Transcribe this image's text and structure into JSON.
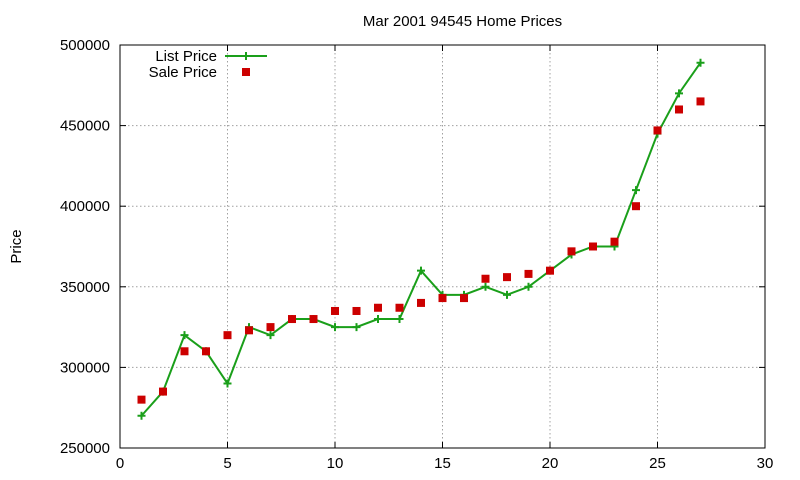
{
  "chart_data": {
    "type": "line",
    "title": "Mar 2001 94545 Home Prices",
    "xlabel": "",
    "ylabel": "Price",
    "xlim": [
      0,
      30
    ],
    "ylim": [
      250000,
      500000
    ],
    "xticks": [
      "0",
      "5",
      "10",
      "15",
      "20",
      "25",
      "30"
    ],
    "yticks": [
      "250000",
      "300000",
      "350000",
      "400000",
      "450000",
      "500000"
    ],
    "grid": true,
    "legend_position": "top-left",
    "series": [
      {
        "name": "List Price",
        "style": "linespoints",
        "color": "#1a9f1a",
        "x": [
          1,
          2,
          3,
          4,
          5,
          6,
          7,
          8,
          9,
          10,
          11,
          12,
          13,
          14,
          15,
          16,
          17,
          18,
          19,
          20,
          21,
          22,
          23,
          24,
          25,
          26,
          27
        ],
        "y": [
          270000,
          285000,
          320000,
          310000,
          290000,
          325000,
          320000,
          330000,
          330000,
          325000,
          325000,
          330000,
          330000,
          360000,
          345000,
          345000,
          350000,
          345000,
          350000,
          360000,
          370000,
          375000,
          375000,
          410000,
          445000,
          470000,
          489000
        ]
      },
      {
        "name": "Sale Price",
        "style": "points",
        "color": "#cc0000",
        "x": [
          1,
          2,
          3,
          4,
          5,
          6,
          7,
          8,
          9,
          10,
          11,
          12,
          13,
          14,
          15,
          16,
          17,
          18,
          19,
          20,
          21,
          22,
          23,
          24,
          25,
          26,
          27
        ],
        "y": [
          280000,
          285000,
          310000,
          310000,
          320000,
          323000,
          325000,
          330000,
          330000,
          335000,
          335000,
          337000,
          337000,
          340000,
          343000,
          343000,
          355000,
          356000,
          358000,
          360000,
          372000,
          375000,
          378000,
          400000,
          447000,
          460000,
          465000
        ]
      }
    ]
  }
}
